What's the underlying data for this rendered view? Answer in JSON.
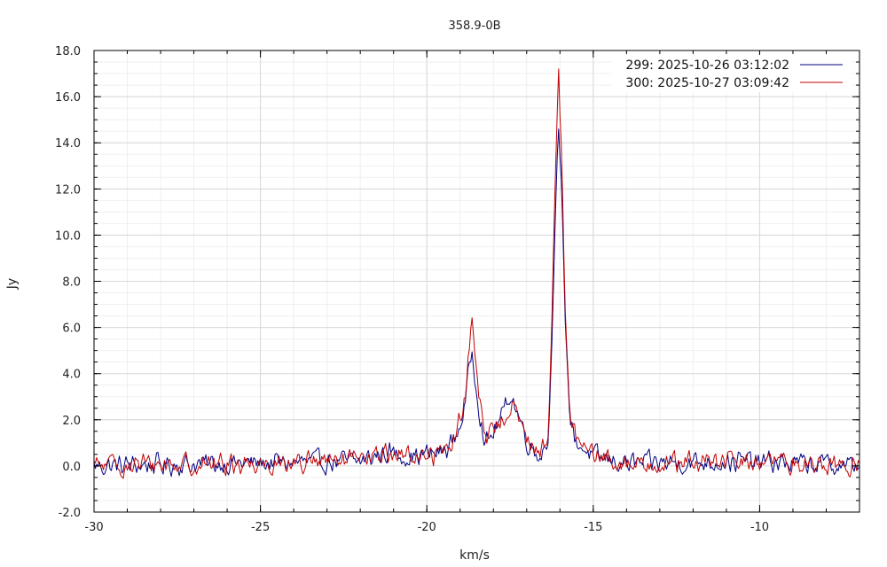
{
  "chart_data": {
    "type": "line",
    "title": "358.9-0B",
    "xlabel": "km/s",
    "ylabel": "Jy",
    "xlim": [
      -30,
      -7
    ],
    "ylim": [
      -2.0,
      18.0
    ],
    "x_ticks": [
      "-30",
      "-25",
      "-20",
      "-15",
      "-10"
    ],
    "y_ticks": [
      "-2.0",
      "0.0",
      "2.0",
      "4.0",
      "6.0",
      "8.0",
      "10.0",
      "12.0",
      "14.0",
      "16.0",
      "18.0"
    ],
    "grid": true,
    "legend_position": "top-right",
    "series": [
      {
        "name": "299:   2025-10-26 03:12:02",
        "color": "#000080",
        "anchors": [
          [
            -30,
            0.0
          ],
          [
            -22.0,
            0.2
          ],
          [
            -21.2,
            0.6
          ],
          [
            -20.5,
            0.4
          ],
          [
            -19.5,
            0.6
          ],
          [
            -19.1,
            1.3
          ],
          [
            -18.85,
            2.6
          ],
          [
            -18.65,
            5.1
          ],
          [
            -18.45,
            2.8
          ],
          [
            -18.25,
            0.8
          ],
          [
            -18.0,
            1.5
          ],
          [
            -17.7,
            2.3
          ],
          [
            -17.5,
            3.2
          ],
          [
            -17.3,
            2.4
          ],
          [
            -17.1,
            1.6
          ],
          [
            -16.9,
            0.8
          ],
          [
            -16.6,
            0.5
          ],
          [
            -16.35,
            1.1
          ],
          [
            -16.25,
            5.0
          ],
          [
            -16.15,
            10.5
          ],
          [
            -16.05,
            14.6
          ],
          [
            -15.95,
            12.0
          ],
          [
            -15.85,
            6.5
          ],
          [
            -15.7,
            2.0
          ],
          [
            -15.5,
            1.0
          ],
          [
            -15.0,
            0.4
          ],
          [
            -14.0,
            0.1
          ],
          [
            -10.5,
            0.2
          ],
          [
            -7,
            0.0
          ]
        ],
        "noise": 0.5,
        "peak": 14.6
      },
      {
        "name": "300:   2025-10-27 03:09:42",
        "color": "#c00000",
        "anchors": [
          [
            -30,
            0.0
          ],
          [
            -22.0,
            0.2
          ],
          [
            -21.2,
            0.6
          ],
          [
            -20.5,
            0.4
          ],
          [
            -19.5,
            0.6
          ],
          [
            -19.1,
            1.4
          ],
          [
            -18.85,
            3.0
          ],
          [
            -18.65,
            6.3
          ],
          [
            -18.45,
            3.2
          ],
          [
            -18.25,
            1.0
          ],
          [
            -18.0,
            1.6
          ],
          [
            -17.7,
            2.1
          ],
          [
            -17.5,
            2.7
          ],
          [
            -17.3,
            2.2
          ],
          [
            -17.1,
            1.5
          ],
          [
            -16.9,
            0.9
          ],
          [
            -16.6,
            0.6
          ],
          [
            -16.35,
            1.3
          ],
          [
            -16.25,
            5.8
          ],
          [
            -16.15,
            12.0
          ],
          [
            -16.05,
            17.2
          ],
          [
            -15.95,
            13.5
          ],
          [
            -15.85,
            7.0
          ],
          [
            -15.7,
            2.2
          ],
          [
            -15.5,
            1.1
          ],
          [
            -15.0,
            0.4
          ],
          [
            -14.0,
            0.1
          ],
          [
            -10.5,
            0.2
          ],
          [
            -7,
            0.0
          ]
        ],
        "noise": 0.5,
        "peak": 17.2
      }
    ]
  }
}
